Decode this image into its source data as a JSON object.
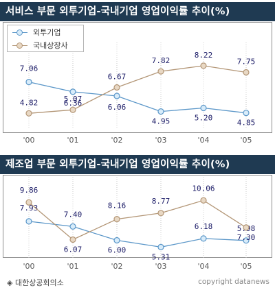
{
  "colors": {
    "title_bg": "#1f3a52",
    "foreign": "#5a96c8",
    "foreign_fill": "#d8ecfa",
    "domestic": "#b39676",
    "domestic_fill": "#e8d8c4",
    "grid": "#c8c8c8",
    "label": "#1a1a66"
  },
  "legend": {
    "foreign_label": "외투기업",
    "domestic_label": "국내상장사"
  },
  "footer": {
    "source_icon": "diamond-icon",
    "source": "◈ 대한상공회의소",
    "copyright": "copyright datanews"
  },
  "chart_data": [
    {
      "type": "line",
      "title": "서비스 부문 외투기업-국내기업 영업이익률 추이(%)",
      "categories": [
        "'00",
        "'01",
        "'02",
        "'03",
        "'04",
        "'05"
      ],
      "series": [
        {
          "name": "외투기업",
          "values": [
            7.06,
            6.36,
            6.06,
            4.95,
            5.2,
            4.85
          ],
          "labels": [
            "7.06",
            "6.36",
            "6.06",
            "4.95",
            "5.20",
            "4.85"
          ]
        },
        {
          "name": "국내상장사",
          "values": [
            4.82,
            5.07,
            6.67,
            7.82,
            8.22,
            7.75
          ],
          "labels": [
            "4.82",
            "5.07",
            "6.67",
            "7.82",
            "8.22",
            "7.75"
          ]
        }
      ],
      "ylim": [
        4.0,
        9.0
      ],
      "grid": true,
      "legend": "top-left"
    },
    {
      "type": "line",
      "title": "제조업 부문 외투기업-국내기업 영업이익률 추이(%)",
      "categories": [
        "'00",
        "'01",
        "'02",
        "'03",
        "'04",
        "'05"
      ],
      "series": [
        {
          "name": "외투기업",
          "values": [
            7.93,
            7.4,
            6.0,
            5.31,
            6.18,
            5.98
          ],
          "labels": [
            "7.93",
            "7.40",
            "6.00",
            "5.31",
            "6.18",
            "5.98"
          ]
        },
        {
          "name": "국내상장사",
          "values": [
            9.86,
            6.07,
            8.16,
            8.77,
            10.06,
            7.3
          ],
          "labels": [
            "9.86",
            "6.07",
            "8.16",
            "8.77",
            "10.06",
            "7.30"
          ]
        }
      ],
      "ylim": [
        4.5,
        11.2
      ],
      "grid": true,
      "legend": "none"
    }
  ]
}
